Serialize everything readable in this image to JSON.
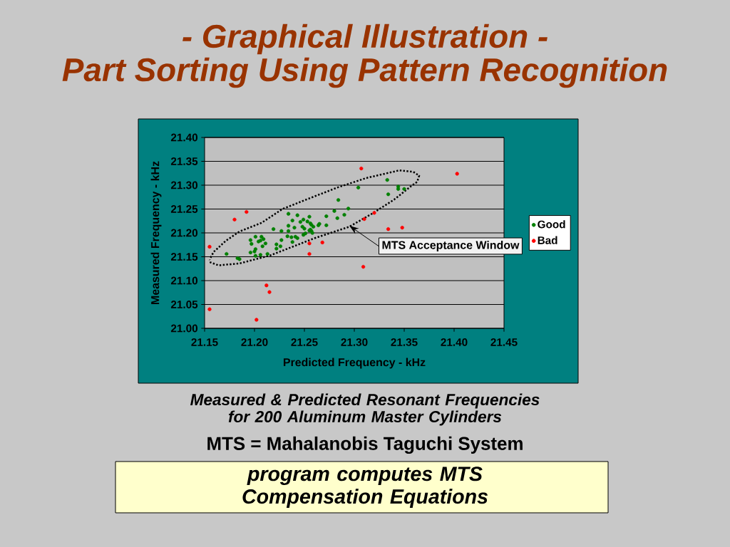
{
  "chart_data": {
    "type": "scatter",
    "title": "- Graphical Illustration -",
    "subtitle": "Part Sorting Using Pattern Recognition",
    "xlabel": "Predicted Frequency - kHz",
    "ylabel": "Measured Frequency - kHz",
    "xlim": [
      21.15,
      21.45
    ],
    "xticks": [
      21.15,
      {
        "value": 21.2,
        "label": "21.20"
      },
      21.25,
      {
        "value": 21.3,
        "label": "21.30"
      },
      21.35,
      {
        "value": 21.4,
        "label": "21.40"
      },
      21.45
    ],
    "ylim": [
      21.0,
      21.4
    ],
    "yticks": [
      {
        "value": 21.0,
        "label": "21.00"
      },
      21.05,
      {
        "value": 21.1,
        "label": "21.10"
      },
      21.15,
      {
        "value": 21.2,
        "label": "21.20"
      },
      21.25,
      {
        "value": 21.3,
        "label": "21.30"
      },
      21.35,
      {
        "value": 21.4,
        "label": "21.40"
      }
    ],
    "grid": "y",
    "legend": "right",
    "marker": "circle",
    "series": [
      {
        "name": "Good",
        "color": "#008000",
        "x": [
          21.172,
          21.183,
          21.185,
          21.196,
          21.197,
          21.201,
          21.204,
          21.206,
          21.207,
          21.209,
          21.211,
          21.208,
          21.201,
          21.2,
          21.196,
          21.206,
          21.201,
          21.213,
          21.222,
          21.226,
          21.222,
          21.227,
          21.233,
          21.237,
          21.241,
          21.238,
          21.243,
          21.249,
          21.251,
          21.258,
          21.219,
          21.227,
          21.234,
          21.234,
          21.24,
          21.248,
          21.25,
          21.256,
          21.234,
          21.243,
          21.255,
          21.249,
          21.238,
          21.246,
          21.253,
          21.256,
          21.257,
          21.259,
          21.264,
          21.265,
          21.272,
          21.255,
          21.257,
          21.272,
          21.283,
          21.29,
          21.28,
          21.294,
          21.284,
          21.304,
          21.333,
          21.344,
          21.344,
          21.35,
          21.334
        ],
        "values": [
          21.156,
          21.147,
          21.145,
          21.185,
          21.177,
          21.192,
          21.182,
          21.184,
          21.192,
          21.187,
          21.178,
          21.172,
          21.166,
          21.161,
          21.159,
          21.154,
          21.152,
          21.156,
          21.176,
          21.172,
          21.167,
          21.185,
          21.193,
          21.191,
          21.192,
          21.181,
          21.189,
          21.196,
          21.199,
          21.2,
          21.208,
          21.204,
          21.204,
          21.215,
          21.211,
          21.213,
          21.209,
          21.207,
          21.24,
          21.237,
          21.234,
          21.228,
          21.226,
          21.223,
          21.224,
          21.22,
          21.217,
          21.213,
          21.216,
          21.219,
          21.216,
          21.205,
          21.204,
          21.235,
          21.231,
          21.238,
          21.246,
          21.251,
          21.269,
          21.295,
          21.311,
          21.297,
          21.292,
          21.292,
          21.281
        ]
      },
      {
        "name": "Bad",
        "color": "#ff0000",
        "x": [
          21.18,
          21.192,
          21.307,
          21.32,
          21.31,
          21.334,
          21.348,
          21.403,
          21.155,
          21.255,
          21.255,
          21.268,
          21.309,
          21.212,
          21.215,
          21.155,
          21.202
        ],
        "values": [
          21.228,
          21.244,
          21.335,
          21.242,
          21.229,
          21.208,
          21.211,
          21.324,
          21.171,
          21.178,
          21.156,
          21.18,
          21.129,
          21.09,
          21.076,
          21.04,
          21.018
        ]
      },
      {
        "type": "line",
        "color": "#000000",
        "line_style": "dotted",
        "marker": "none",
        "x": [
          21.156,
          21.159,
          21.171,
          21.185,
          21.207,
          21.228,
          21.252,
          21.283,
          21.312,
          21.345,
          21.359,
          21.365,
          21.363,
          21.357,
          21.34,
          21.32,
          21.295,
          21.259,
          21.216,
          21.185,
          21.164,
          21.156,
          21.155
        ],
        "values": [
          21.148,
          21.16,
          21.183,
          21.203,
          21.221,
          21.25,
          21.27,
          21.295,
          21.315,
          21.331,
          21.328,
          21.32,
          21.307,
          21.298,
          21.27,
          21.243,
          21.213,
          21.188,
          21.153,
          21.136,
          21.132,
          21.138,
          21.144
        ]
      }
    ],
    "annotations": [
      {
        "text": "MTS Acceptance Window",
        "x": 21.295,
        "y": 21.215
      },
      "Measured & Predicted Resonant Frequencies for 200 Aluminum Master Cylinders",
      "MTS = Mahalanobis Taguchi System",
      "program computes MTS Compensation Equations"
    ]
  }
}
